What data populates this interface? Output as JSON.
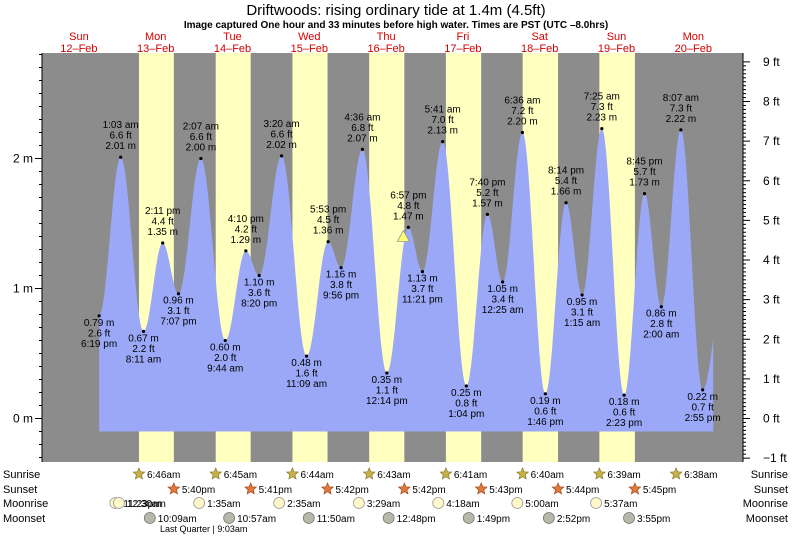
{
  "title": "Driftwoods: rising  ordinary tide at 1.4m (4.5ft)",
  "subtitle": "Image captured One hour and 33 minutes before high water. Times are PST (UTC –8.0hrs)",
  "colors": {
    "night": "#8c8c8c",
    "day": "#ffffc0",
    "tide": "#9aa8f7",
    "date_text": "#d40000",
    "marker": "#ffff77"
  },
  "chart_data": {
    "type": "area",
    "days": [
      {
        "dow": "Sun",
        "date": "12–Feb"
      },
      {
        "dow": "Mon",
        "date": "13–Feb"
      },
      {
        "dow": "Tue",
        "date": "14–Feb"
      },
      {
        "dow": "Wed",
        "date": "15–Feb"
      },
      {
        "dow": "Thu",
        "date": "16–Feb"
      },
      {
        "dow": "Fri",
        "date": "17–Feb"
      },
      {
        "dow": "Sat",
        "date": "18–Feb"
      },
      {
        "dow": "Sun",
        "date": "19–Feb"
      },
      {
        "dow": "Mon",
        "date": "20–Feb"
      }
    ],
    "left_axis": {
      "labels": [
        "0 m",
        "1 m",
        "2 m"
      ],
      "values": [
        0,
        1,
        2
      ]
    },
    "right_axis": {
      "labels": [
        "−1 ft",
        "0 ft",
        "1 ft",
        "2 ft",
        "3 ft",
        "4 ft",
        "5 ft",
        "6 ft",
        "7 ft",
        "8 ft",
        "9 ft"
      ],
      "values": [
        -1,
        0,
        1,
        2,
        3,
        4,
        5,
        6,
        7,
        8,
        9
      ]
    },
    "ylim_m": [
      -0.31,
      2.88
    ],
    "tides": [
      {
        "time": "12-Feb 6:19 pm",
        "t": 18.317,
        "m": 0.79,
        "ft": "2.6 ft",
        "m_label": "0.79 m",
        "time_label": "6:19 pm",
        "type": "low"
      },
      {
        "time": "13-Feb 1:03 am",
        "t": 25.05,
        "m": 2.01,
        "ft": "6.6 ft",
        "m_label": "2.01 m",
        "time_label": "1:03 am",
        "type": "high"
      },
      {
        "time": "13-Feb 8:11 am",
        "t": 32.183,
        "m": 0.67,
        "ft": "2.2 ft",
        "m_label": "0.67 m",
        "time_label": "8:11 am",
        "type": "low"
      },
      {
        "time": "13-Feb 2:11 pm",
        "t": 38.183,
        "m": 1.35,
        "ft": "4.4 ft",
        "m_label": "1.35 m",
        "time_label": "2:11 pm",
        "type": "high"
      },
      {
        "time": "13-Feb 7:07 pm",
        "t": 43.117,
        "m": 0.96,
        "ft": "3.1 ft",
        "m_label": "0.96 m",
        "time_label": "7:07 pm",
        "type": "low"
      },
      {
        "time": "14-Feb 2:07 am",
        "t": 50.117,
        "m": 2.0,
        "ft": "6.6 ft",
        "m_label": "2.00 m",
        "time_label": "2:07 am",
        "type": "high"
      },
      {
        "time": "14-Feb 9:44 am",
        "t": 57.733,
        "m": 0.6,
        "ft": "2.0 ft",
        "m_label": "0.60 m",
        "time_label": "9:44 am",
        "type": "low"
      },
      {
        "time": "14-Feb 4:10 pm",
        "t": 64.167,
        "m": 1.29,
        "ft": "4.2 ft",
        "m_label": "1.29 m",
        "time_label": "4:10 pm",
        "type": "high"
      },
      {
        "time": "14-Feb 8:20 pm",
        "t": 68.333,
        "m": 1.1,
        "ft": "3.6 ft",
        "m_label": "1.10 m",
        "time_label": "8:20 pm",
        "type": "low"
      },
      {
        "time": "15-Feb 3:20 am",
        "t": 75.333,
        "m": 2.02,
        "ft": "6.6 ft",
        "m_label": "2.02 m",
        "time_label": "3:20 am",
        "type": "high"
      },
      {
        "time": "15-Feb 11:09 am",
        "t": 83.15,
        "m": 0.48,
        "ft": "1.6 ft",
        "m_label": "0.48 m",
        "time_label": "11:09 am",
        "type": "low"
      },
      {
        "time": "15-Feb 5:53 pm",
        "t": 89.883,
        "m": 1.36,
        "ft": "4.5 ft",
        "m_label": "1.36 m",
        "time_label": "5:53 pm",
        "type": "high"
      },
      {
        "time": "15-Feb 9:56 pm",
        "t": 93.933,
        "m": 1.16,
        "ft": "3.8 ft",
        "m_label": "1.16 m",
        "time_label": "9:56 pm",
        "type": "low"
      },
      {
        "time": "16-Feb 4:36 am",
        "t": 100.6,
        "m": 2.07,
        "ft": "6.8 ft",
        "m_label": "2.07 m",
        "time_label": "4:36 am",
        "type": "high"
      },
      {
        "time": "16-Feb 12:14 pm",
        "t": 108.233,
        "m": 0.35,
        "ft": "1.1 ft",
        "m_label": "0.35 m",
        "time_label": "12:14 pm",
        "type": "low"
      },
      {
        "time": "16-Feb 6:57 pm",
        "t": 114.95,
        "m": 1.47,
        "ft": "4.8 ft",
        "m_label": "1.47 m",
        "time_label": "6:57 pm",
        "type": "high"
      },
      {
        "time": "16-Feb 11:21 pm",
        "t": 119.35,
        "m": 1.13,
        "ft": "3.7 ft",
        "m_label": "1.13 m",
        "time_label": "11:21 pm",
        "type": "low"
      },
      {
        "time": "17-Feb 5:41 am",
        "t": 125.683,
        "m": 2.13,
        "ft": "7.0 ft",
        "m_label": "2.13 m",
        "time_label": "5:41 am",
        "type": "high"
      },
      {
        "time": "17-Feb 1:04 pm",
        "t": 133.067,
        "m": 0.25,
        "ft": "0.8 ft",
        "m_label": "0.25 m",
        "time_label": "1:04 pm",
        "type": "low"
      },
      {
        "time": "17-Feb 7:40 pm",
        "t": 139.667,
        "m": 1.57,
        "ft": "5.2 ft",
        "m_label": "1.57 m",
        "time_label": "7:40 pm",
        "type": "high"
      },
      {
        "time": "18-Feb 12:25 am",
        "t": 144.417,
        "m": 1.05,
        "ft": "3.4 ft",
        "m_label": "1.05 m",
        "time_label": "12:25 am",
        "type": "low"
      },
      {
        "time": "18-Feb 6:36 am",
        "t": 150.6,
        "m": 2.2,
        "ft": "7.2 ft",
        "m_label": "2.20 m",
        "time_label": "6:36 am",
        "type": "high"
      },
      {
        "time": "18-Feb 1:46 pm",
        "t": 157.767,
        "m": 0.19,
        "ft": "0.6 ft",
        "m_label": "0.19 m",
        "time_label": "1:46 pm",
        "type": "low"
      },
      {
        "time": "18-Feb 8:14 pm",
        "t": 164.233,
        "m": 1.66,
        "ft": "5.4 ft",
        "m_label": "1.66 m",
        "time_label": "8:14 pm",
        "type": "high"
      },
      {
        "time": "19-Feb 1:15 am",
        "t": 169.25,
        "m": 0.95,
        "ft": "3.1 ft",
        "m_label": "0.95 m",
        "time_label": "1:15 am",
        "type": "low"
      },
      {
        "time": "19-Feb 7:25 am",
        "t": 175.417,
        "m": 2.23,
        "ft": "7.3 ft",
        "m_label": "2.23 m",
        "time_label": "7:25 am",
        "type": "high"
      },
      {
        "time": "19-Feb 2:23 pm",
        "t": 182.383,
        "m": 0.18,
        "ft": "0.6 ft",
        "m_label": "0.18 m",
        "time_label": "2:23 pm",
        "type": "low"
      },
      {
        "time": "19-Feb 8:45 pm",
        "t": 188.75,
        "m": 1.73,
        "ft": "5.7 ft",
        "m_label": "1.73 m",
        "time_label": "8:45 pm",
        "type": "high"
      },
      {
        "time": "20-Feb 2:00 am",
        "t": 194.0,
        "m": 0.86,
        "ft": "2.8 ft",
        "m_label": "0.86 m",
        "time_label": "2:00 am",
        "type": "low"
      },
      {
        "time": "20-Feb 8:07 am",
        "t": 200.117,
        "m": 2.22,
        "ft": "7.3 ft",
        "m_label": "2.22 m",
        "time_label": "8:07 am",
        "type": "high"
      },
      {
        "time": "20-Feb 2:55 pm",
        "t": 206.917,
        "m": 0.22,
        "ft": "0.7 ft",
        "m_label": "0.22 m",
        "time_label": "2:55 pm",
        "type": "low"
      }
    ],
    "current": {
      "t": 113.4,
      "m": 1.4
    },
    "sunrise": [
      "6:46am",
      "6:45am",
      "6:44am",
      "6:43am",
      "6:41am",
      "6:40am",
      "6:39am",
      "6:38am"
    ],
    "sunset": [
      "5:40pm",
      "5:41pm",
      "5:42pm",
      "5:42pm",
      "5:43pm",
      "5:44pm",
      "5:45pm"
    ],
    "moonrise": [
      "11:23pm",
      "12:30am",
      "1:35am",
      "2:35am",
      "3:29am",
      "4:18am",
      "5:00am",
      "5:37am"
    ],
    "moonset": [
      "10:09am",
      "10:57am",
      "11:50am",
      "12:48pm",
      "1:49pm",
      "2:52pm",
      "3:55pm"
    ],
    "moon_phase": "Last Quarter | 9:03am"
  },
  "legend_labels": {
    "sunrise": "Sunrise",
    "sunset": "Sunset",
    "moonrise": "Moonrise",
    "moonset": "Moonset"
  }
}
